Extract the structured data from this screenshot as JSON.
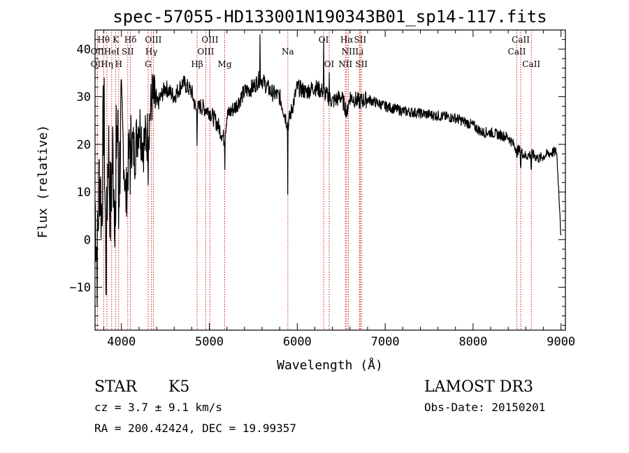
{
  "chart_data": {
    "type": "line",
    "title": "spec-57055-HD133001N190343B01_sp14-117.fits",
    "xlabel": "Wavelength (Å)",
    "ylabel": "Flux (relative)",
    "xlim": [
      3700,
      9050
    ],
    "ylim": [
      -19,
      44
    ],
    "x_ticks": [
      4000,
      5000,
      6000,
      7000,
      8000,
      9000
    ],
    "x_tick_labels": [
      "4000",
      "5000",
      "6000",
      "7000",
      "8000",
      "9000"
    ],
    "y_ticks": [
      -10,
      0,
      10,
      20,
      30,
      40
    ],
    "y_tick_labels": [
      "−10",
      "0",
      "10",
      "20",
      "30",
      "40"
    ],
    "series": [
      {
        "name": "flux",
        "x": [
          3700,
          3725,
          3750,
          3775,
          3800,
          3825,
          3850,
          3875,
          3900,
          3925,
          3950,
          3975,
          4000,
          4050,
          4100,
          4150,
          4200,
          4250,
          4300,
          4350,
          4400,
          4500,
          4600,
          4700,
          4800,
          4850,
          4900,
          5000,
          5100,
          5170,
          5200,
          5300,
          5400,
          5500,
          5580,
          5700,
          5800,
          5893,
          6000,
          6100,
          6200,
          6300,
          6400,
          6500,
          6563,
          6600,
          6700,
          6800,
          7000,
          7200,
          7400,
          7600,
          7800,
          8000,
          8100,
          8200,
          8300,
          8400,
          8498,
          8542,
          8600,
          8662,
          8750,
          8850,
          8950,
          8990,
          9000
        ],
        "values": [
          8,
          -5,
          15,
          5,
          30,
          -8,
          22,
          5,
          18,
          8,
          25,
          12,
          28,
          8,
          22,
          18,
          25,
          20,
          22,
          30,
          28,
          32,
          30,
          33,
          31,
          27,
          28,
          27,
          24,
          21,
          26,
          28,
          31,
          32,
          34,
          31,
          30,
          24,
          32,
          31,
          32,
          31,
          29,
          30,
          27,
          30,
          29,
          29.5,
          28,
          27,
          26.5,
          26,
          25.5,
          24,
          22.5,
          22.5,
          22,
          21.5,
          19,
          18.5,
          17.5,
          18,
          17,
          18,
          18.5,
          5,
          0
        ]
      }
    ],
    "reference_lines": [
      {
        "wavelength": 3727,
        "label": "OII"
      },
      {
        "wavelength": 3798,
        "label": "Hθ"
      },
      {
        "wavelength": 3835,
        "label": "Hη"
      },
      {
        "wavelength": 3889,
        "label": "HeI"
      },
      {
        "wavelength": 3934,
        "label": "K"
      },
      {
        "wavelength": 3969,
        "label": "H"
      },
      {
        "wavelength": 4072,
        "label": "SII"
      },
      {
        "wavelength": 4102,
        "label": "Hδ"
      },
      {
        "wavelength": 4304,
        "label": "G"
      },
      {
        "wavelength": 4341,
        "label": "Hγ"
      },
      {
        "wavelength": 4363,
        "label": "OIII"
      },
      {
        "wavelength": 4861,
        "label": "Hβ"
      },
      {
        "wavelength": 4959,
        "label": "OIII"
      },
      {
        "wavelength": 5007,
        "label": "OIII"
      },
      {
        "wavelength": 5175,
        "label": "Mg"
      },
      {
        "wavelength": 5893,
        "label": "Na"
      },
      {
        "wavelength": 6300,
        "label": "OI"
      },
      {
        "wavelength": 6363,
        "label": "OI"
      },
      {
        "wavelength": 6548,
        "label": "NII"
      },
      {
        "wavelength": 6563,
        "label": "Hα"
      },
      {
        "wavelength": 6583,
        "label": "NII"
      },
      {
        "wavelength": 6707,
        "label": "Li"
      },
      {
        "wavelength": 6716,
        "label": "SII"
      },
      {
        "wavelength": 6731,
        "label": "SII"
      },
      {
        "wavelength": 8498,
        "label": "CaII"
      },
      {
        "wavelength": 8542,
        "label": "CaII"
      },
      {
        "wavelength": 8662,
        "label": "CaII"
      }
    ],
    "line_label_rows": [
      [
        {
          "label": "Hθ",
          "wavelength": 3798
        },
        {
          "label": "K",
          "wavelength": 3934
        },
        {
          "label": "Hδ",
          "wavelength": 4102
        },
        {
          "label": "OIII",
          "wavelength": 4363
        },
        {
          "label": "OIII",
          "wavelength": 5007
        },
        {
          "label": "OI",
          "wavelength": 6300
        },
        {
          "label": "Hα",
          "wavelength": 6563
        },
        {
          "label": "SII",
          "wavelength": 6716
        },
        {
          "label": "CaII",
          "wavelength": 8542
        }
      ],
      [
        {
          "label": "OII",
          "wavelength": 3727
        },
        {
          "label": "HeI",
          "wavelength": 3889
        },
        {
          "label": "SII",
          "wavelength": 4072
        },
        {
          "label": "Hγ",
          "wavelength": 4341
        },
        {
          "label": "OIII",
          "wavelength": 4959
        },
        {
          "label": "Na",
          "wavelength": 5893
        },
        {
          "label": "NII",
          "wavelength": 6583
        },
        {
          "label": "Li",
          "wavelength": 6707
        },
        {
          "label": "CaII",
          "wavelength": 8498
        }
      ],
      [
        {
          "label": "OII",
          "wavelength": 3727
        },
        {
          "label": "Hη",
          "wavelength": 3835
        },
        {
          "label": "H",
          "wavelength": 3969
        },
        {
          "label": "G",
          "wavelength": 4304
        },
        {
          "label": "Hβ",
          "wavelength": 4861
        },
        {
          "label": "Mg",
          "wavelength": 5175
        },
        {
          "label": "OI",
          "wavelength": 6363
        },
        {
          "label": "NII",
          "wavelength": 6548
        },
        {
          "label": "SII",
          "wavelength": 6731
        },
        {
          "label": "CaII",
          "wavelength": 8662
        }
      ]
    ]
  },
  "colors": {
    "spectrum": "#000000",
    "reference_line": "#cc0000",
    "axis": "#000000"
  },
  "info": {
    "object_class": "STAR",
    "subclass": "K5",
    "survey": "LAMOST DR3",
    "redshift": "cz = 3.7 ± 9.1 km/s",
    "obs_date": "Obs-Date: 20150201",
    "coords": "RA = 200.42424, DEC =  19.99357"
  }
}
